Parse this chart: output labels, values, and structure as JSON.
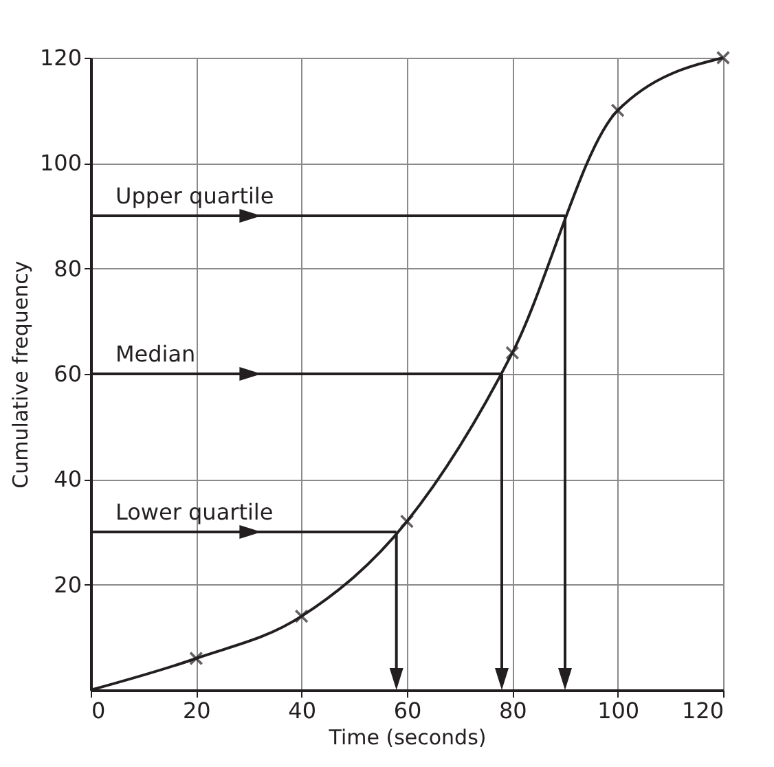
{
  "chart_data": {
    "type": "line",
    "xlabel": "Time (seconds)",
    "ylabel": "Cumulative frequency",
    "xlim": [
      0,
      120
    ],
    "ylim": [
      0,
      120
    ],
    "xticks": [
      0,
      20,
      40,
      60,
      80,
      100,
      120
    ],
    "yticks": [
      20,
      40,
      60,
      80,
      100,
      120
    ],
    "grid": true,
    "series": [
      {
        "type": "line",
        "color": "#231f20",
        "x": [
          0,
          20,
          40,
          60,
          80,
          100,
          120
        ],
        "values": [
          0,
          6,
          14,
          32,
          64,
          110,
          120
        ],
        "marker": "none"
      },
      {
        "type": "scatter",
        "color": "#231f20",
        "x": [
          20,
          40,
          60,
          80,
          100,
          120
        ],
        "values": [
          6,
          14,
          32,
          64,
          110,
          120
        ],
        "marker": "cross"
      }
    ],
    "annotations": [
      {
        "text": "Upper quartile",
        "x": 90,
        "y": 90
      },
      {
        "text": "Median",
        "x": 78,
        "y": 60
      },
      {
        "text": "Lower quartile",
        "x": 58,
        "y": 30
      }
    ]
  }
}
